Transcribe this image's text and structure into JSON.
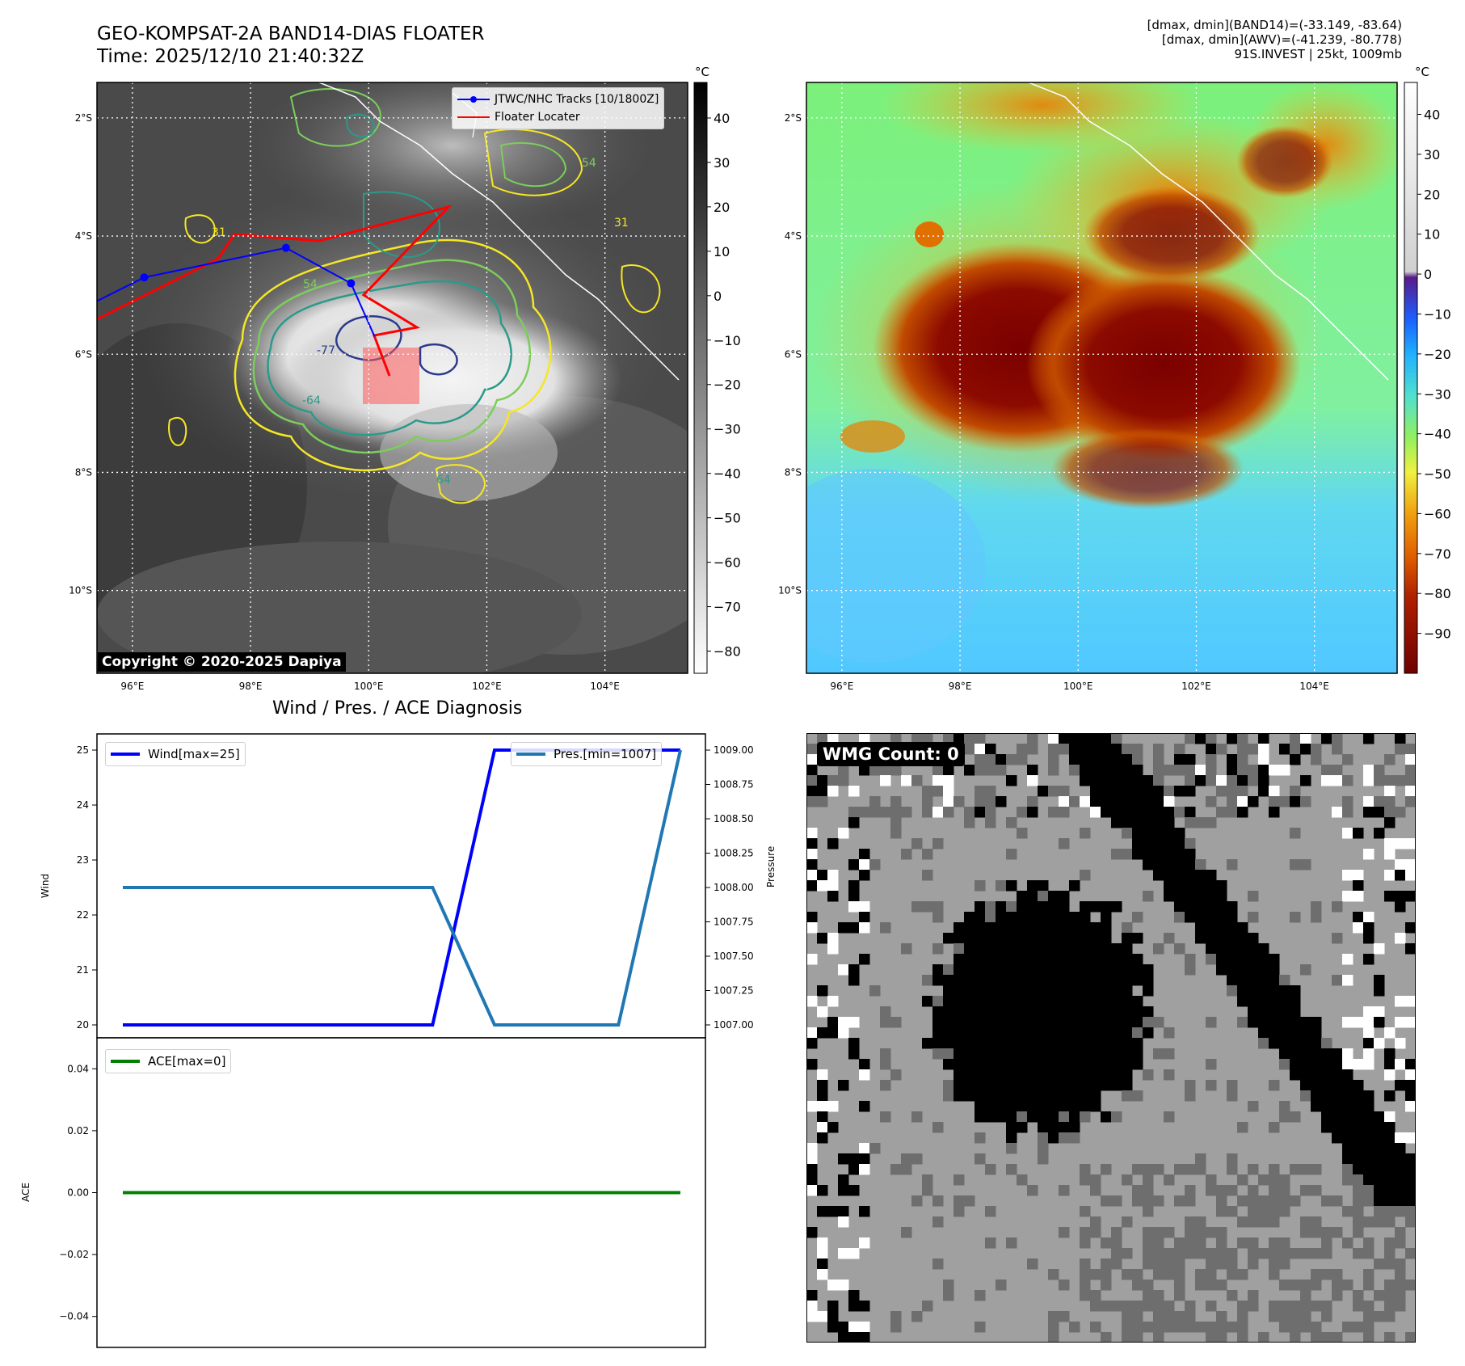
{
  "header": {
    "title_line1": "GEO-KOMPSAT-2A BAND14-DIAS FLOATER",
    "title_line2": "Time: 2025/12/10 21:40:32Z",
    "info_line1": "[dmax, dmin](BAND14)=(-33.149, -83.64)",
    "info_line2": "[dmax, dmin](AWV)=(-41.239, -80.778)",
    "info_line3": "91S.INVEST | 25kt, 1009mb"
  },
  "maps": {
    "lat_ticks": [
      "2°S",
      "4°S",
      "6°S",
      "8°S",
      "10°S"
    ],
    "lon_ticks": [
      "96°E",
      "98°E",
      "100°E",
      "102°E",
      "104°E"
    ],
    "lon_range": [
      95.4,
      105.4
    ],
    "lat_range": [
      -1.4,
      -11.4
    ],
    "unit": "°C",
    "gray_colorbar_ticks": [
      "40",
      "30",
      "20",
      "10",
      "0",
      "−10",
      "−20",
      "−30",
      "−40",
      "−50",
      "−60",
      "−70",
      "−80"
    ],
    "color_colorbar_ticks": [
      "40",
      "30",
      "20",
      "10",
      "0",
      "−10",
      "−20",
      "−30",
      "−40",
      "−50",
      "−60",
      "−70",
      "−80",
      "−90"
    ],
    "copyright": "Copyright © 2020-2025 Dapiya",
    "legend": {
      "track_label": "JTWC/NHC Tracks [10/1800Z]",
      "floater_label": "Floater Locater"
    },
    "contour_labels": [
      "54",
      "31",
      "31",
      "54",
      "-77",
      "-64",
      "64"
    ],
    "colors": {
      "track": "#0000ff",
      "floater": "#ff0000",
      "contour_yellow": "#f5e626",
      "contour_lightgreen": "#7ccd5a",
      "contour_teal": "#2a9a8a",
      "contour_navy": "#2b3a8c"
    },
    "track_points": [
      {
        "lon": 95.2,
        "lat": -5.2
      },
      {
        "lon": 96.2,
        "lat": -4.7
      },
      {
        "lon": 98.6,
        "lat": -4.2
      },
      {
        "lon": 99.7,
        "lat": -4.8
      },
      {
        "lon": 100.1,
        "lat": -5.7
      }
    ]
  },
  "chart_data": [
    {
      "type": "line",
      "title": "Wind / Pres. / ACE Diagnosis",
      "ylabel": "Wind",
      "y2label": "Pressure",
      "ylim": [
        20,
        25
      ],
      "y2lim": [
        1007.0,
        1009.0
      ],
      "yticks": [
        "25",
        "24",
        "23",
        "22",
        "21",
        "20"
      ],
      "y2ticks": [
        "1009.00",
        "1008.75",
        "1008.50",
        "1008.25",
        "1008.00",
        "1007.75",
        "1007.50",
        "1007.25",
        "1007.00"
      ],
      "x": [
        0,
        1,
        2,
        3,
        4,
        5,
        6,
        7,
        8,
        9
      ],
      "series": [
        {
          "name": "Wind[max=25]",
          "axis": "left",
          "color": "#0000ff",
          "values": [
            20,
            20,
            20,
            20,
            20,
            20,
            25,
            25,
            25,
            25
          ]
        },
        {
          "name": "Pres.[min=1007]",
          "axis": "right",
          "color": "#1f77b4",
          "values": [
            1008,
            1008,
            1008,
            1008,
            1008,
            1008,
            1007,
            1007,
            1007,
            1009
          ]
        }
      ]
    },
    {
      "type": "line",
      "ylabel": "ACE",
      "ylim": [
        -0.05,
        0.05
      ],
      "yticks": [
        "0.04",
        "0.02",
        "0.00",
        "−0.02",
        "−0.04"
      ],
      "x": [
        0,
        1,
        2,
        3,
        4,
        5,
        6,
        7,
        8,
        9
      ],
      "series": [
        {
          "name": "ACE[max=0]",
          "color": "#008000",
          "values": [
            0,
            0,
            0,
            0,
            0,
            0,
            0,
            0,
            0,
            0
          ]
        }
      ]
    }
  ],
  "wmg": {
    "label": "WMG Count: 0"
  }
}
